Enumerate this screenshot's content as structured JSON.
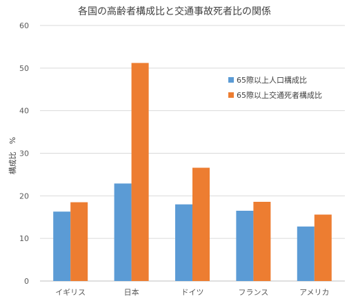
{
  "chart_data": {
    "type": "bar",
    "title": "各国の高齢者構成比と交通事故死者比の関係",
    "ylabel": "構成比　%",
    "xlabel": "",
    "categories": [
      "イギリス",
      "日本",
      "ドイツ",
      "フランス",
      "アメリカ"
    ],
    "series": [
      {
        "name": "65際以上人口構成比",
        "color": "#5b9bd5",
        "values": [
          16.3,
          22.9,
          18.0,
          16.5,
          12.8
        ]
      },
      {
        "name": "65際以上交通死者構成比",
        "color": "#ed7d31",
        "values": [
          18.5,
          51.2,
          26.6,
          18.6,
          15.6
        ]
      }
    ],
    "ylim": [
      0,
      60
    ],
    "yticks": [
      0,
      10,
      20,
      30,
      40,
      50,
      60
    ],
    "grid": true,
    "legend_position": "right"
  }
}
